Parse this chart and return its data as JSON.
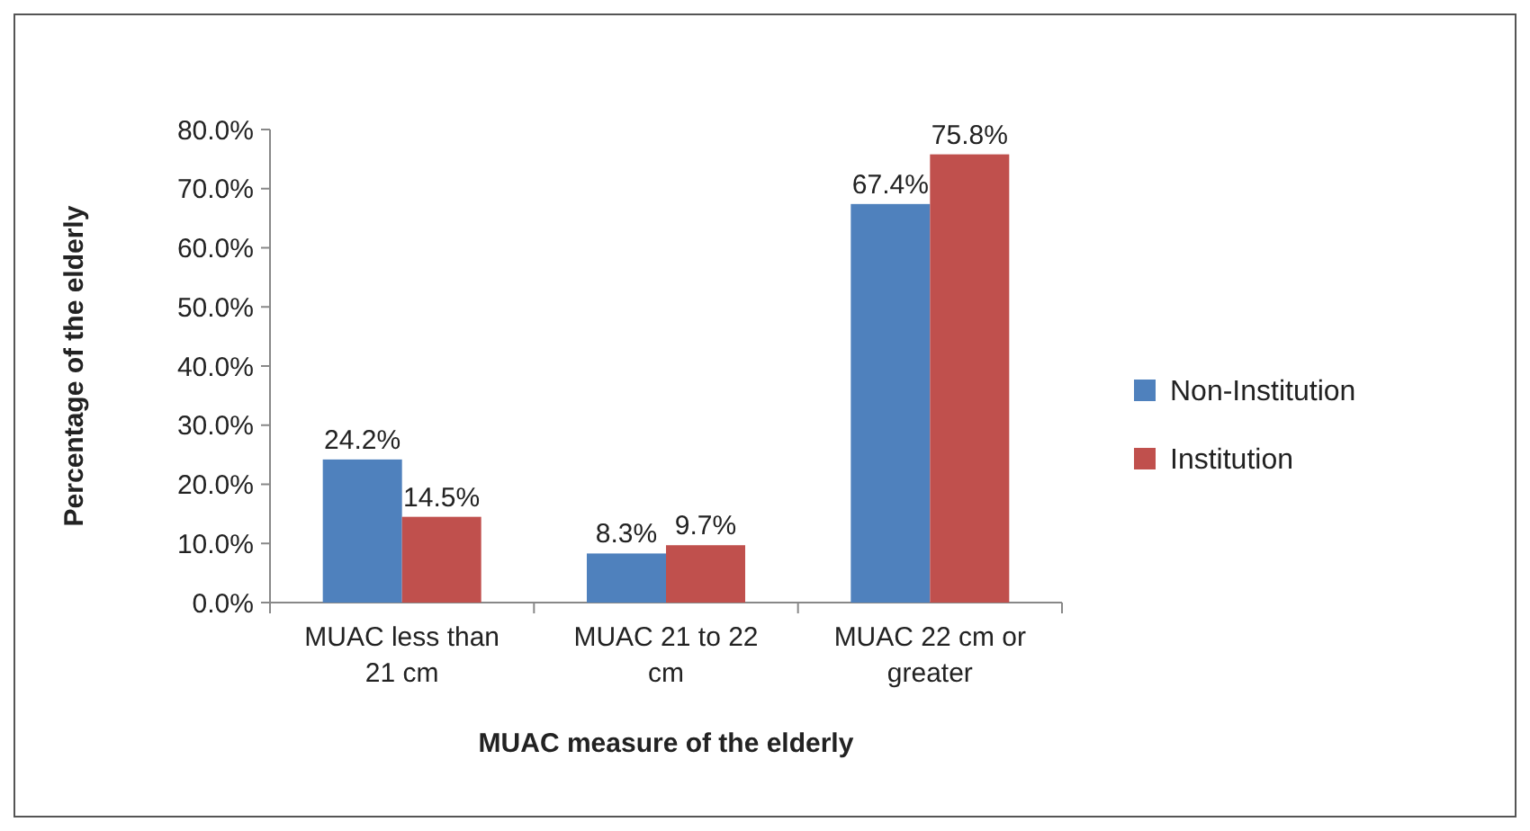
{
  "chart_data": {
    "type": "bar",
    "xlabel": "MUAC measure of the elderly",
    "ylabel": "Percentage of the elderly",
    "categories": [
      "MUAC less than 21 cm",
      "MUAC 21 to 22 cm",
      "MUAC 22 cm or greater"
    ],
    "series": [
      {
        "name": "Non-Institution",
        "color": "#4f81bd",
        "values": [
          24.2,
          8.3,
          67.4
        ]
      },
      {
        "name": "Institution",
        "color": "#c0504d",
        "values": [
          14.5,
          9.7,
          75.8
        ]
      }
    ],
    "ylim": [
      0,
      80
    ],
    "yticks": [
      {
        "value": 0,
        "label": "0.0%"
      },
      {
        "value": 10,
        "label": "10.0%"
      },
      {
        "value": 20,
        "label": "20.0%"
      },
      {
        "value": 30,
        "label": "30.0%"
      },
      {
        "value": 40,
        "label": "40.0%"
      },
      {
        "value": 50,
        "label": "50.0%"
      },
      {
        "value": 60,
        "label": "60.0%"
      },
      {
        "value": 70,
        "label": "70.0%"
      },
      {
        "value": 80,
        "label": "80.0%"
      }
    ],
    "value_labels": [
      [
        "24.2%",
        "8.3%",
        "67.4%"
      ],
      [
        "14.5%",
        "9.7%",
        "75.8%"
      ]
    ],
    "legend": "right",
    "grid": false
  }
}
